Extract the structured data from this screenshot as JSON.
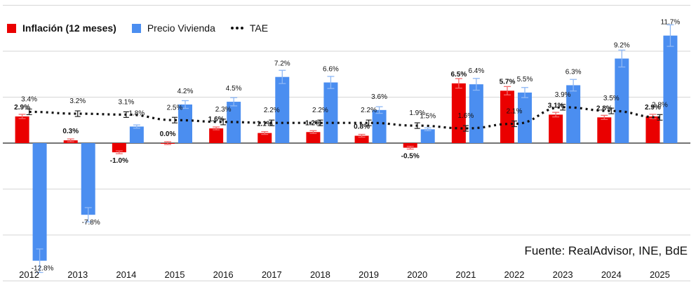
{
  "legend": {
    "inflation": "Inflación (12 meses)",
    "housing": "Precio Vivienda",
    "tae": "TAE"
  },
  "source": "Fuente: RealAdvisor, INE, BdE",
  "colors": {
    "inflation": "#ea0000",
    "housing": "#4b8ef0",
    "tae": "#111111",
    "grid": "#d6d6d6",
    "error_inflation": "#f26a6a",
    "error_housing": "#8fb8f5"
  },
  "chart_data": {
    "type": "bar",
    "categories": [
      "2012",
      "2013",
      "2014",
      "2015",
      "2016",
      "2017",
      "2018",
      "2019",
      "2020",
      "2021",
      "2022",
      "2023",
      "2024",
      "2025"
    ],
    "ylim": [
      -15,
      15
    ],
    "series": [
      {
        "name": "Inflación (12 meses)",
        "type": "bar",
        "values": [
          2.9,
          0.3,
          -1.0,
          0.0,
          1.6,
          1.1,
          1.2,
          0.8,
          -0.5,
          6.5,
          5.7,
          3.1,
          2.8,
          2.9
        ],
        "labels": [
          "2.9%",
          "0.3%",
          "-1.0%",
          "0.0%",
          "1.6%",
          "1.1%",
          "1.2%",
          "0.8%",
          "-0.5%",
          "6.5%",
          "5.7%",
          "3.1%",
          "2.8%",
          "2.9%"
        ]
      },
      {
        "name": "Precio Vivienda",
        "type": "bar",
        "values": [
          -12.8,
          -7.8,
          1.8,
          4.2,
          4.5,
          7.2,
          6.6,
          3.6,
          1.5,
          6.4,
          5.5,
          6.3,
          9.2,
          11.7
        ],
        "labels": [
          "-12.8%",
          "-7.8%",
          "1.8%",
          "4.2%",
          "4.5%",
          "7.2%",
          "6.6%",
          "3.6%",
          "1.5%",
          "6.4%",
          "5.5%",
          "6.3%",
          "9.2%",
          "11.7%"
        ]
      },
      {
        "name": "TAE",
        "type": "line",
        "values": [
          3.4,
          3.2,
          3.1,
          2.5,
          2.3,
          2.2,
          2.2,
          2.2,
          1.9,
          1.6,
          2.1,
          3.9,
          3.5,
          2.8
        ],
        "labels": [
          "3.4%",
          "3.2%",
          "3.1%",
          "2.5%",
          "2.3%",
          "2.2%",
          "2.2%",
          "2.2%",
          "1.9%",
          "1.6%",
          "2.1%",
          "3.9%",
          "3.5%",
          "2.8%"
        ]
      }
    ],
    "grid": true,
    "legend_position": "top-left"
  }
}
